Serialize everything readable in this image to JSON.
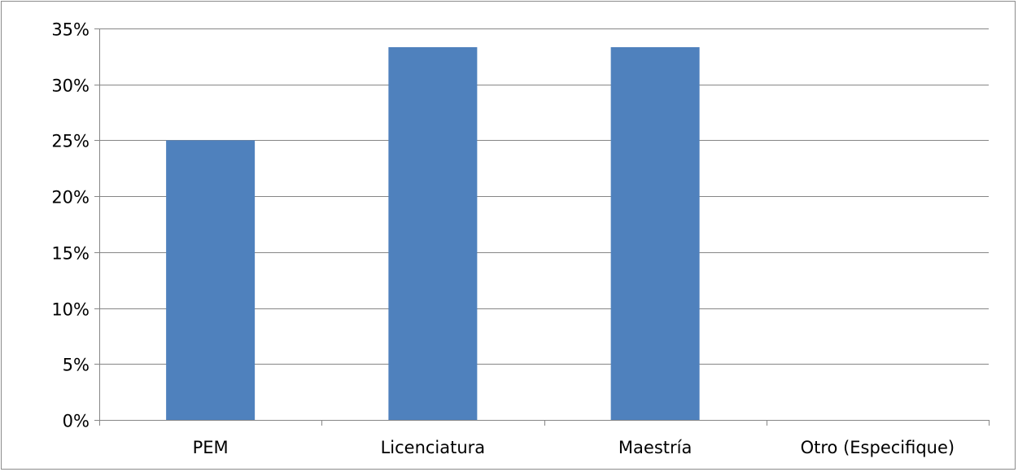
{
  "chart_data": {
    "type": "bar",
    "categories": [
      "PEM",
      "Licenciatura",
      "Maestría",
      "Otro (Especifique)"
    ],
    "values": [
      25,
      33.33,
      33.33,
      0
    ],
    "y_tick_labels": [
      "0%",
      "5%",
      "10%",
      "15%",
      "20%",
      "25%",
      "30%",
      "35%"
    ],
    "ylim": [
      0,
      35
    ],
    "y_tick_step": 5,
    "grid": true,
    "legend": "none",
    "title": "",
    "xlabel": "",
    "ylabel": "",
    "colors": {
      "bar": "#4F81BD",
      "grid": "#868686",
      "axis": "#868686",
      "border": "#8c8c8c",
      "text": "#000000"
    }
  }
}
